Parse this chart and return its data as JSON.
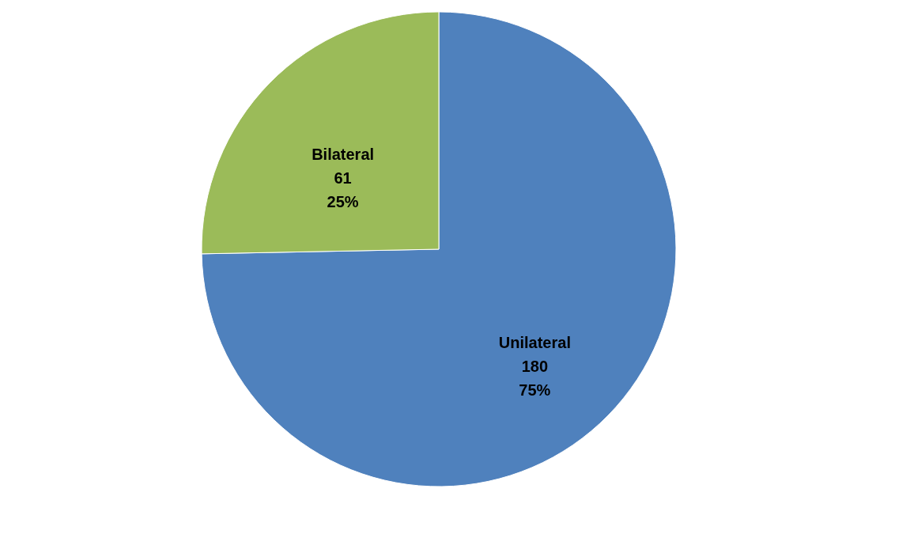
{
  "chart_data": {
    "type": "pie",
    "categories": [
      "Unilateral",
      "Bilateral"
    ],
    "values": [
      180,
      61
    ],
    "colors": [
      "#4f81bd",
      "#9bbb59"
    ],
    "value_labels": [
      "180 75%",
      "61 25%"
    ],
    "legend": false
  }
}
